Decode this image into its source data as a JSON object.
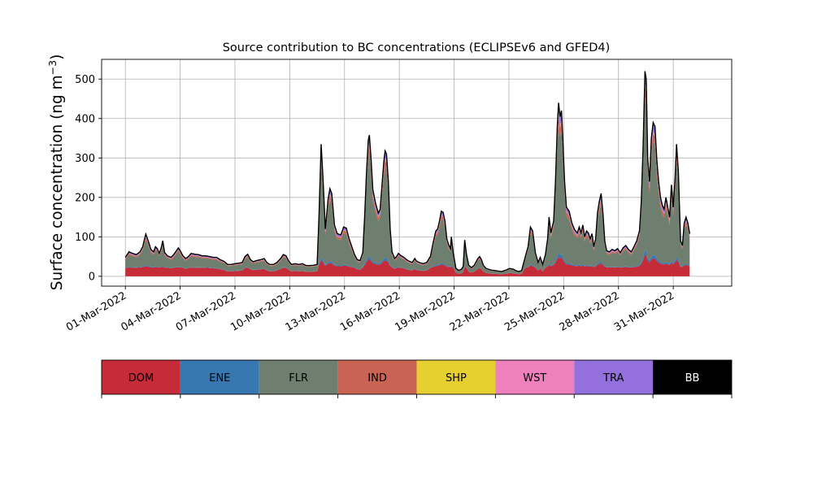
{
  "chart_data": {
    "type": "area",
    "title": "Source contribution to BC concentrations (ECLIPSEv6 and GFED4)",
    "ylabel_main": "Surface concentration (ng m",
    "ylabel_sup": "−3",
    "ylabel_close": ")",
    "xlabel": "",
    "x_unit": "days since 01-Mar-2022 00:00 (3-hourly)",
    "xlim": [
      -1.3,
      33.2
    ],
    "ylim": [
      -25,
      550
    ],
    "yticks": [
      0,
      100,
      200,
      300,
      400,
      500
    ],
    "ytick_labels": [
      "0",
      "100",
      "200",
      "300",
      "400",
      "500"
    ],
    "xticks": [
      0,
      3,
      6,
      9,
      12,
      15,
      18,
      21,
      24,
      27,
      30
    ],
    "xtick_labels": [
      "01-Mar-2022",
      "04-Mar-2022",
      "07-Mar-2022",
      "10-Mar-2022",
      "13-Mar-2022",
      "16-Mar-2022",
      "19-Mar-2022",
      "22-Mar-2022",
      "25-Mar-2022",
      "28-Mar-2022",
      "31-Mar-2022"
    ],
    "grid": true,
    "legend_position": "bottom colorbar",
    "series_order": [
      "DOM",
      "ENE",
      "FLR",
      "IND",
      "SHP",
      "WST",
      "TRA",
      "BB"
    ],
    "colors": {
      "DOM": "#c62b38",
      "ENE": "#3878b0",
      "FLR": "#6e7f6f",
      "IND": "#c96455",
      "SHP": "#e6d030",
      "WST": "#ef80be",
      "TRA": "#9370db",
      "BB": "#000000"
    },
    "total_keypoints": [
      [
        0.0,
        48
      ],
      [
        0.2,
        62
      ],
      [
        0.4,
        58
      ],
      [
        0.6,
        55
      ],
      [
        0.8,
        62
      ],
      [
        0.95,
        75
      ],
      [
        1.05,
        95
      ],
      [
        1.12,
        107
      ],
      [
        1.25,
        90
      ],
      [
        1.4,
        68
      ],
      [
        1.55,
        62
      ],
      [
        1.65,
        75
      ],
      [
        1.75,
        70
      ],
      [
        1.85,
        58
      ],
      [
        1.95,
        70
      ],
      [
        2.05,
        90
      ],
      [
        2.15,
        60
      ],
      [
        2.3,
        52
      ],
      [
        2.5,
        48
      ],
      [
        2.65,
        55
      ],
      [
        2.8,
        65
      ],
      [
        2.9,
        72
      ],
      [
        3.0,
        65
      ],
      [
        3.15,
        52
      ],
      [
        3.3,
        45
      ],
      [
        3.45,
        50
      ],
      [
        3.6,
        58
      ],
      [
        3.8,
        56
      ],
      [
        4.0,
        55
      ],
      [
        4.2,
        52
      ],
      [
        4.4,
        52
      ],
      [
        4.6,
        50
      ],
      [
        4.8,
        48
      ],
      [
        5.0,
        48
      ],
      [
        5.2,
        42
      ],
      [
        5.4,
        38
      ],
      [
        5.6,
        30
      ],
      [
        5.8,
        30
      ],
      [
        6.0,
        32
      ],
      [
        6.2,
        33
      ],
      [
        6.4,
        35
      ],
      [
        6.55,
        50
      ],
      [
        6.7,
        56
      ],
      [
        6.85,
        42
      ],
      [
        7.0,
        37
      ],
      [
        7.2,
        40
      ],
      [
        7.4,
        42
      ],
      [
        7.6,
        45
      ],
      [
        7.75,
        35
      ],
      [
        7.9,
        30
      ],
      [
        8.1,
        30
      ],
      [
        8.3,
        35
      ],
      [
        8.5,
        45
      ],
      [
        8.65,
        55
      ],
      [
        8.8,
        52
      ],
      [
        8.95,
        38
      ],
      [
        9.1,
        30
      ],
      [
        9.3,
        32
      ],
      [
        9.5,
        30
      ],
      [
        9.7,
        32
      ],
      [
        9.85,
        28
      ],
      [
        10.0,
        27
      ],
      [
        10.3,
        28
      ],
      [
        10.5,
        30
      ],
      [
        10.6,
        150
      ],
      [
        10.72,
        335
      ],
      [
        10.82,
        250
      ],
      [
        10.95,
        120
      ],
      [
        11.1,
        195
      ],
      [
        11.2,
        222
      ],
      [
        11.3,
        210
      ],
      [
        11.45,
        130
      ],
      [
        11.6,
        108
      ],
      [
        11.8,
        105
      ],
      [
        11.95,
        125
      ],
      [
        12.1,
        122
      ],
      [
        12.25,
        95
      ],
      [
        12.4,
        75
      ],
      [
        12.55,
        55
      ],
      [
        12.7,
        42
      ],
      [
        12.85,
        40
      ],
      [
        13.0,
        60
      ],
      [
        13.1,
        150
      ],
      [
        13.2,
        260
      ],
      [
        13.3,
        345
      ],
      [
        13.36,
        358
      ],
      [
        13.45,
        300
      ],
      [
        13.55,
        220
      ],
      [
        13.7,
        185
      ],
      [
        13.85,
        160
      ],
      [
        13.95,
        170
      ],
      [
        14.05,
        230
      ],
      [
        14.15,
        290
      ],
      [
        14.22,
        318
      ],
      [
        14.3,
        310
      ],
      [
        14.4,
        240
      ],
      [
        14.5,
        120
      ],
      [
        14.6,
        62
      ],
      [
        14.75,
        45
      ],
      [
        14.85,
        50
      ],
      [
        14.95,
        58
      ],
      [
        15.1,
        52
      ],
      [
        15.25,
        48
      ],
      [
        15.4,
        42
      ],
      [
        15.55,
        38
      ],
      [
        15.7,
        35
      ],
      [
        15.85,
        45
      ],
      [
        15.95,
        38
      ],
      [
        16.1,
        35
      ],
      [
        16.3,
        32
      ],
      [
        16.5,
        35
      ],
      [
        16.7,
        50
      ],
      [
        16.85,
        85
      ],
      [
        17.0,
        115
      ],
      [
        17.1,
        120
      ],
      [
        17.2,
        140
      ],
      [
        17.3,
        165
      ],
      [
        17.4,
        162
      ],
      [
        17.5,
        140
      ],
      [
        17.6,
        95
      ],
      [
        17.7,
        80
      ],
      [
        17.8,
        70
      ],
      [
        17.85,
        100
      ],
      [
        17.95,
        60
      ],
      [
        18.1,
        20
      ],
      [
        18.25,
        15
      ],
      [
        18.4,
        18
      ],
      [
        18.5,
        25
      ],
      [
        18.58,
        92
      ],
      [
        18.68,
        55
      ],
      [
        18.8,
        28
      ],
      [
        18.95,
        22
      ],
      [
        19.1,
        28
      ],
      [
        19.3,
        45
      ],
      [
        19.4,
        50
      ],
      [
        19.5,
        42
      ],
      [
        19.6,
        28
      ],
      [
        19.75,
        20
      ],
      [
        20.0,
        16
      ],
      [
        20.3,
        14
      ],
      [
        20.6,
        12
      ],
      [
        20.85,
        16
      ],
      [
        21.05,
        20
      ],
      [
        21.25,
        18
      ],
      [
        21.4,
        14
      ],
      [
        21.55,
        12
      ],
      [
        21.7,
        15
      ],
      [
        21.9,
        50
      ],
      [
        22.05,
        75
      ],
      [
        22.18,
        125
      ],
      [
        22.3,
        115
      ],
      [
        22.45,
        60
      ],
      [
        22.6,
        35
      ],
      [
        22.72,
        48
      ],
      [
        22.85,
        30
      ],
      [
        23.0,
        55
      ],
      [
        23.12,
        95
      ],
      [
        23.2,
        150
      ],
      [
        23.3,
        110
      ],
      [
        23.45,
        140
      ],
      [
        23.55,
        240
      ],
      [
        23.65,
        380
      ],
      [
        23.72,
        440
      ],
      [
        23.8,
        405
      ],
      [
        23.88,
        420
      ],
      [
        23.95,
        350
      ],
      [
        24.05,
        240
      ],
      [
        24.15,
        175
      ],
      [
        24.3,
        165
      ],
      [
        24.45,
        135
      ],
      [
        24.6,
        118
      ],
      [
        24.75,
        110
      ],
      [
        24.85,
        125
      ],
      [
        24.95,
        110
      ],
      [
        25.05,
        130
      ],
      [
        25.15,
        100
      ],
      [
        25.25,
        115
      ],
      [
        25.35,
        110
      ],
      [
        25.45,
        95
      ],
      [
        25.55,
        108
      ],
      [
        25.65,
        75
      ],
      [
        25.75,
        95
      ],
      [
        25.85,
        160
      ],
      [
        25.95,
        190
      ],
      [
        26.05,
        210
      ],
      [
        26.15,
        160
      ],
      [
        26.25,
        90
      ],
      [
        26.35,
        65
      ],
      [
        26.5,
        62
      ],
      [
        26.65,
        68
      ],
      [
        26.8,
        65
      ],
      [
        26.95,
        70
      ],
      [
        27.1,
        60
      ],
      [
        27.25,
        72
      ],
      [
        27.4,
        78
      ],
      [
        27.55,
        68
      ],
      [
        27.7,
        62
      ],
      [
        27.85,
        75
      ],
      [
        28.0,
        90
      ],
      [
        28.15,
        115
      ],
      [
        28.25,
        190
      ],
      [
        28.35,
        330
      ],
      [
        28.45,
        520
      ],
      [
        28.52,
        500
      ],
      [
        28.6,
        300
      ],
      [
        28.7,
        240
      ],
      [
        28.8,
        350
      ],
      [
        28.9,
        390
      ],
      [
        29.0,
        380
      ],
      [
        29.1,
        295
      ],
      [
        29.2,
        240
      ],
      [
        29.3,
        200
      ],
      [
        29.4,
        180
      ],
      [
        29.5,
        170
      ],
      [
        29.6,
        200
      ],
      [
        29.7,
        175
      ],
      [
        29.8,
        150
      ],
      [
        29.9,
        232
      ],
      [
        30.0,
        175
      ],
      [
        30.1,
        250
      ],
      [
        30.18,
        335
      ],
      [
        30.28,
        265
      ],
      [
        30.4,
        90
      ],
      [
        30.5,
        78
      ],
      [
        30.6,
        135
      ],
      [
        30.7,
        150
      ],
      [
        30.8,
        135
      ],
      [
        30.9,
        108
      ]
    ],
    "share_model": {
      "DOM": 0.42,
      "ENE": 0.035,
      "FLR": 0.42,
      "IND": 0.055,
      "SHP": 0.004,
      "WST": 0.008,
      "TRA": 0.05,
      "BB": 0.008
    },
    "colorbar_labels": [
      "DOM",
      "ENE",
      "FLR",
      "IND",
      "SHP",
      "WST",
      "TRA",
      "BB"
    ],
    "colorbar_text_colors": [
      "#000000",
      "#000000",
      "#000000",
      "#000000",
      "#000000",
      "#000000",
      "#000000",
      "#ffffff"
    ]
  }
}
